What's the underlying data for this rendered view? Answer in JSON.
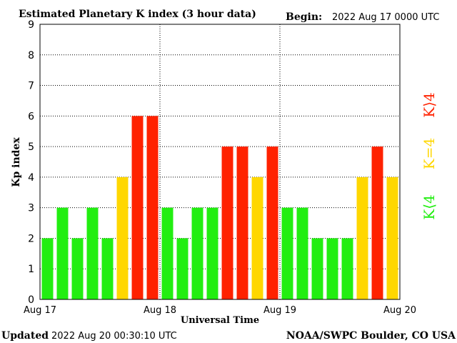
{
  "header": {
    "title": "Estimated Planetary K index (3 hour data)",
    "begin_label": "Begin:",
    "begin_value": "2022 Aug 17 0000 UTC"
  },
  "footer": {
    "updated_label": "Updated",
    "updated_value": "2022 Aug 20 00:30:10 UTC",
    "credit": "NOAA/SWPC Boulder, CO USA"
  },
  "legend": {
    "low": "K⟨4",
    "mid": "K=4",
    "high": "K⟩4"
  },
  "colors": {
    "low": "#22ee11",
    "mid": "#ffd700",
    "high": "#ff2200"
  },
  "chart_data": {
    "type": "bar",
    "xlabel": "Universal Time",
    "ylabel": "Kp index",
    "ylim": [
      0,
      9
    ],
    "yticks": [
      "0",
      "1",
      "2",
      "3",
      "4",
      "5",
      "6",
      "7",
      "8",
      "9"
    ],
    "xticks": [
      "Aug 17",
      "Aug 18",
      "Aug 19",
      "Aug 20"
    ],
    "grid": "dotted",
    "values": [
      2,
      3,
      2,
      3,
      2,
      4,
      6,
      6,
      3,
      2,
      3,
      3,
      5,
      5,
      4,
      5,
      3,
      3,
      2,
      2,
      2,
      4,
      5,
      4
    ]
  }
}
